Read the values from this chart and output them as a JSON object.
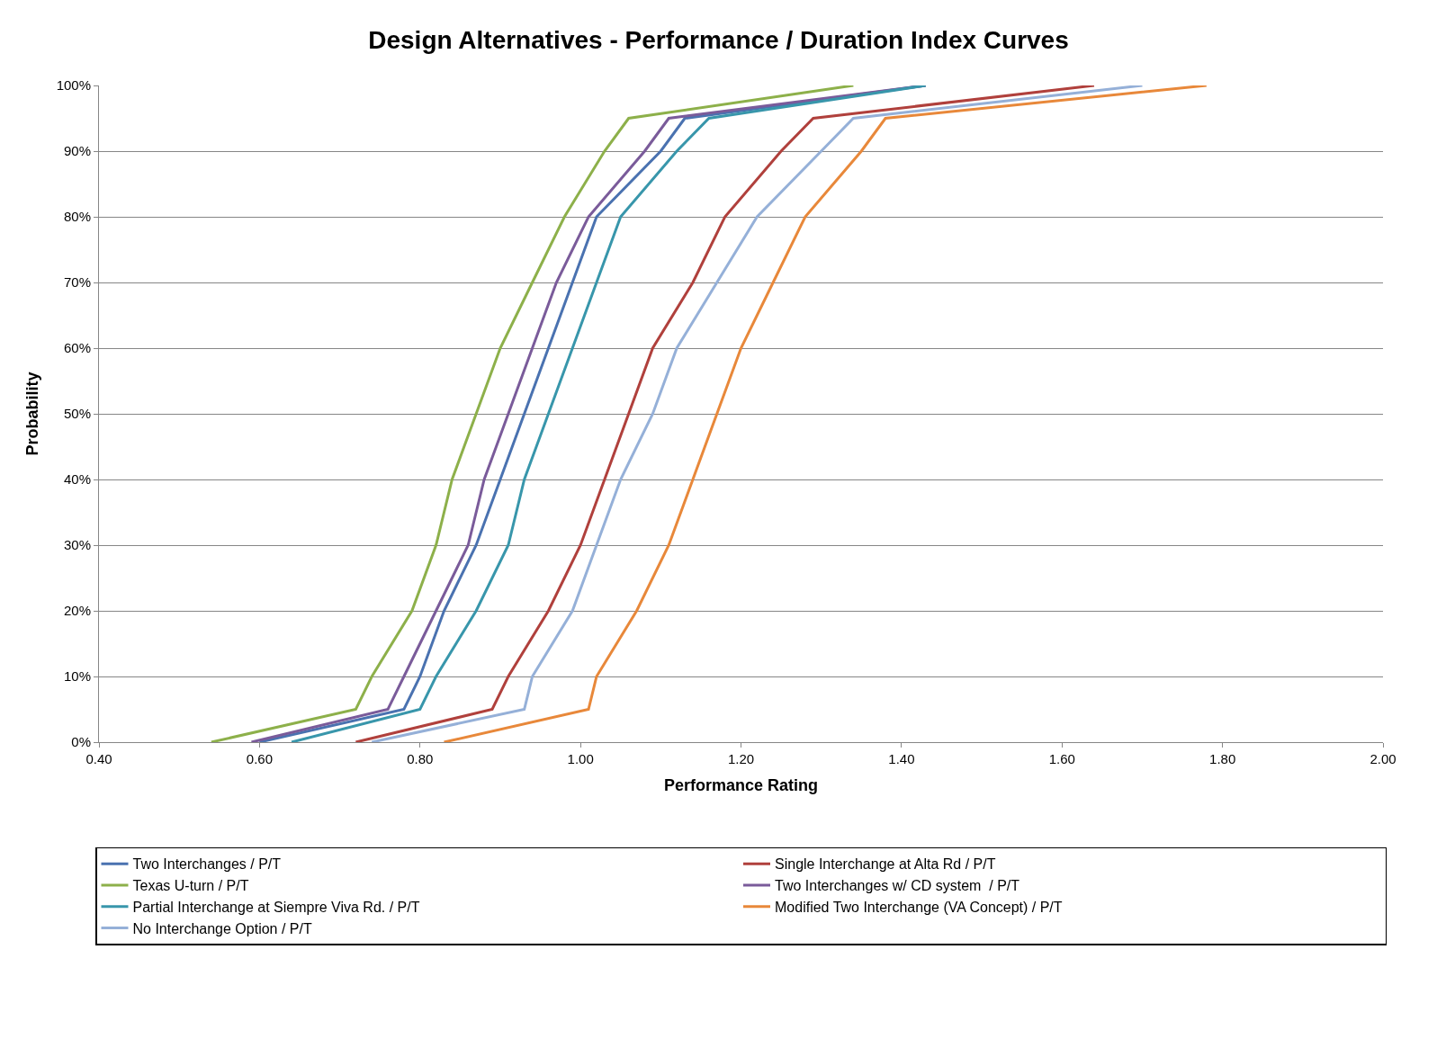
{
  "chart_data": {
    "type": "line",
    "title": "Design Alternatives - Performance / Duration Index Curves",
    "xlabel": "Performance Rating",
    "ylabel": "Probability",
    "xlim": [
      0.4,
      2.0
    ],
    "xticks": [
      {
        "value": 0.4,
        "label": "0.40"
      },
      {
        "value": 0.6,
        "label": "0.60"
      },
      {
        "value": 0.8,
        "label": "0.80"
      },
      {
        "value": 1.0,
        "label": "1.00"
      },
      {
        "value": 1.2,
        "label": "1.20"
      },
      {
        "value": 1.4,
        "label": "1.40"
      },
      {
        "value": 1.6,
        "label": "1.60"
      },
      {
        "value": 1.8,
        "label": "1.80"
      },
      {
        "value": 2.0,
        "label": "2.00"
      }
    ],
    "ylim": [
      0,
      100
    ],
    "yticks": [
      {
        "value": 0,
        "label": "0%"
      },
      {
        "value": 10,
        "label": "10%"
      },
      {
        "value": 20,
        "label": "20%"
      },
      {
        "value": 30,
        "label": "30%"
      },
      {
        "value": 40,
        "label": "40%"
      },
      {
        "value": 50,
        "label": "50%"
      },
      {
        "value": 60,
        "label": "60%"
      },
      {
        "value": 70,
        "label": "70%"
      },
      {
        "value": 80,
        "label": "80%"
      },
      {
        "value": 90,
        "label": "90%"
      },
      {
        "value": 100,
        "label": "100%"
      }
    ],
    "grid": "y",
    "legend": "bottom",
    "marker": "none",
    "line_style": "solid",
    "series": [
      {
        "name": "Two Interchanges / P/T",
        "color": "#4a72b0",
        "x": [
          0.6,
          0.78,
          0.8,
          0.83,
          0.87,
          0.9,
          0.93,
          0.96,
          0.99,
          1.02,
          1.1,
          1.13,
          1.43
        ],
        "values": [
          0,
          5,
          10,
          20,
          30,
          40,
          50,
          60,
          70,
          80,
          90,
          95,
          100
        ]
      },
      {
        "name": "Single Interchange at Alta Rd / P/T",
        "color": "#b0403c",
        "x": [
          0.72,
          0.89,
          0.91,
          0.96,
          1.0,
          1.03,
          1.06,
          1.09,
          1.14,
          1.18,
          1.25,
          1.29,
          1.64
        ],
        "values": [
          0,
          5,
          10,
          20,
          30,
          40,
          50,
          60,
          70,
          80,
          90,
          95,
          100
        ]
      },
      {
        "name": "Texas U-turn / P/T",
        "color": "#8db04a",
        "x": [
          0.54,
          0.72,
          0.74,
          0.79,
          0.82,
          0.84,
          0.87,
          0.9,
          0.94,
          0.98,
          1.03,
          1.06,
          1.34
        ],
        "values": [
          0,
          5,
          10,
          20,
          30,
          40,
          50,
          60,
          70,
          80,
          90,
          95,
          100
        ]
      },
      {
        "name": "Two Interchanges w/ CD system  / P/T",
        "color": "#7a5b9a",
        "x": [
          0.59,
          0.76,
          0.78,
          0.82,
          0.86,
          0.88,
          0.91,
          0.94,
          0.97,
          1.01,
          1.08,
          1.11,
          1.43
        ],
        "values": [
          0,
          5,
          10,
          20,
          30,
          40,
          50,
          60,
          70,
          80,
          90,
          95,
          100
        ]
      },
      {
        "name": "Partial Interchange at Siempre Viva Rd. / P/T",
        "color": "#3896ab",
        "x": [
          0.64,
          0.8,
          0.82,
          0.87,
          0.91,
          0.93,
          0.96,
          0.99,
          1.02,
          1.05,
          1.12,
          1.16,
          1.43
        ],
        "values": [
          0,
          5,
          10,
          20,
          30,
          40,
          50,
          60,
          70,
          80,
          90,
          95,
          100
        ]
      },
      {
        "name": "Modified Two Interchange (VA Concept) / P/T",
        "color": "#e8883a",
        "x": [
          0.83,
          1.01,
          1.02,
          1.07,
          1.11,
          1.14,
          1.17,
          1.2,
          1.24,
          1.28,
          1.35,
          1.38,
          1.78
        ],
        "values": [
          0,
          5,
          10,
          20,
          30,
          40,
          50,
          60,
          70,
          80,
          90,
          95,
          100
        ]
      },
      {
        "name": "No Interchange Option / P/T",
        "color": "#95b0d8",
        "x": [
          0.74,
          0.93,
          0.94,
          0.99,
          1.02,
          1.05,
          1.09,
          1.12,
          1.17,
          1.22,
          1.3,
          1.34,
          1.7
        ],
        "values": [
          0,
          5,
          10,
          20,
          30,
          40,
          50,
          60,
          70,
          80,
          90,
          95,
          100
        ]
      }
    ]
  }
}
